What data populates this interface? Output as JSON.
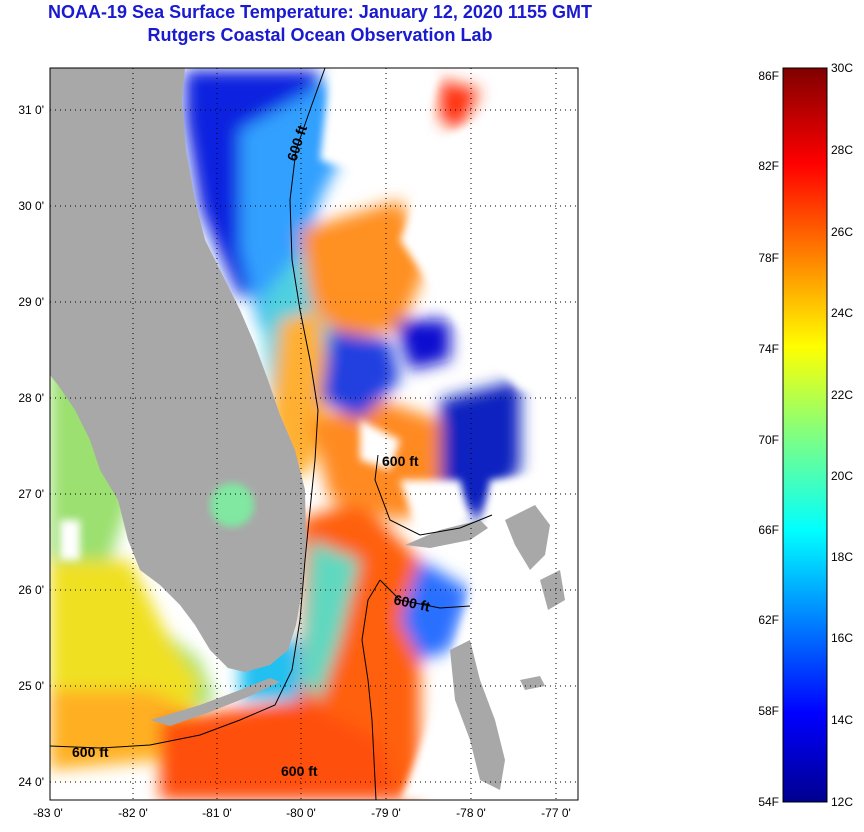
{
  "title": "NOAA-19 Sea Surface Temperature:  January 12, 2020 1155 GMT",
  "subtitle": "Rutgers Coastal Ocean Observation Lab",
  "map": {
    "lon_ticks": [
      "-83 0'",
      "-82 0'",
      "-81 0'",
      "-80 0'",
      "-79 0'",
      "-78 0'",
      "-77 0'"
    ],
    "lat_ticks": [
      "31 0'",
      "30 0'",
      "29 0'",
      "28 0'",
      "27 0'",
      "26 0'",
      "25 0'",
      "24 0'"
    ],
    "contour_labels": [
      "600 ft",
      "600 ft",
      "600 ft",
      "600 ft",
      "600 ft"
    ],
    "colors": {
      "land": "#a8a8a8",
      "cloud": "#ffffff"
    }
  },
  "colorbar": {
    "fahrenheit_labels": [
      "86F",
      "82F",
      "78F",
      "74F",
      "70F",
      "66F",
      "62F",
      "58F",
      "54F"
    ],
    "celsius_labels": [
      "30C",
      "28C",
      "26C",
      "24C",
      "22C",
      "20C",
      "18C",
      "16C",
      "14C",
      "12C"
    ]
  }
}
